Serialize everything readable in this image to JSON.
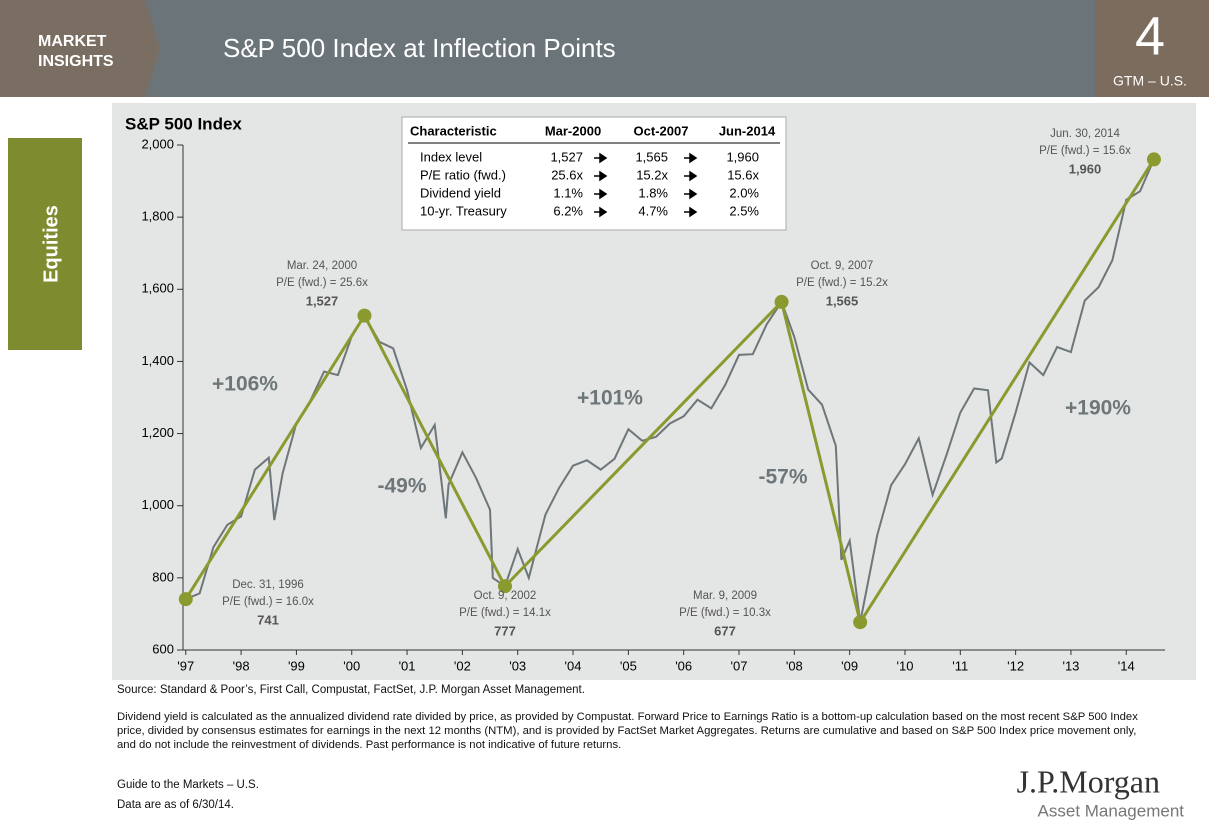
{
  "header": {
    "brand_lines": [
      "MARKET",
      "INSIGHTS"
    ],
    "title": "S&P 500 Index at Inflection Points",
    "page_number": "4",
    "page_label": "GTM – U.S."
  },
  "sidebar": {
    "label": "Equities"
  },
  "chart_data": {
    "type": "line",
    "title": "S&P 500 Index",
    "xlim": [
      1996.95,
      2014.7
    ],
    "xticks": [
      {
        "value": 1997,
        "label": "'97"
      },
      {
        "value": 1998,
        "label": "'98"
      },
      {
        "value": 1999,
        "label": "'99"
      },
      {
        "value": 2000,
        "label": "'00"
      },
      {
        "value": 2001,
        "label": "'01"
      },
      {
        "value": 2002,
        "label": "'02"
      },
      {
        "value": 2003,
        "label": "'03"
      },
      {
        "value": 2004,
        "label": "'04"
      },
      {
        "value": 2005,
        "label": "'05"
      },
      {
        "value": 2006,
        "label": "'06"
      },
      {
        "value": 2007,
        "label": "'07"
      },
      {
        "value": 2008,
        "label": "'08"
      },
      {
        "value": 2009,
        "label": "'09"
      },
      {
        "value": 2010,
        "label": "'10"
      },
      {
        "value": 2011,
        "label": "'11"
      },
      {
        "value": 2012,
        "label": "'12"
      },
      {
        "value": 2013,
        "label": "'13"
      },
      {
        "value": 2014,
        "label": "'14"
      }
    ],
    "ylim": [
      600,
      2000
    ],
    "yticks": [
      600,
      800,
      {
        "value": 1000,
        "label": "1,000"
      },
      {
        "value": 1200,
        "label": "1,200"
      },
      {
        "value": 1400,
        "label": "1,400"
      },
      {
        "value": 1600,
        "label": "1,600"
      },
      {
        "value": 1800,
        "label": "1,800"
      },
      {
        "value": 2000,
        "label": "2,000"
      }
    ],
    "series": [
      {
        "color": "#6d7679",
        "x": [
          1997.0,
          1997.25,
          1997.5,
          1997.75,
          1998.0,
          1998.25,
          1998.5,
          1998.6,
          1998.75,
          1999.0,
          1999.25,
          1999.5,
          1999.75,
          2000.0,
          2000.23,
          2000.5,
          2000.75,
          2001.0,
          2001.25,
          2001.5,
          2001.7,
          2001.75,
          2002.0,
          2002.25,
          2002.5,
          2002.55,
          2002.77,
          2003.0,
          2003.2,
          2003.5,
          2003.75,
          2004.0,
          2004.25,
          2004.5,
          2004.75,
          2005.0,
          2005.25,
          2005.5,
          2005.75,
          2006.0,
          2006.25,
          2006.5,
          2006.75,
          2007.0,
          2007.25,
          2007.5,
          2007.77,
          2008.0,
          2008.25,
          2008.5,
          2008.75,
          2008.85,
          2009.0,
          2009.19,
          2009.5,
          2009.75,
          2010.0,
          2010.25,
          2010.5,
          2010.75,
          2011.0,
          2011.25,
          2011.5,
          2011.65,
          2011.75,
          2012.0,
          2012.25,
          2012.5,
          2012.75,
          2013.0,
          2013.25,
          2013.5,
          2013.75,
          2014.0,
          2014.25,
          2014.5
        ],
        "values": [
          741,
          757,
          885,
          947,
          970,
          1100,
          1133,
          960,
          1090,
          1229,
          1290,
          1372,
          1362,
          1469,
          1527,
          1454,
          1436,
          1320,
          1160,
          1224,
          965,
          1059,
          1148,
          1076,
          989,
          800,
          777,
          880,
          800,
          975,
          1050,
          1111,
          1126,
          1100,
          1130,
          1212,
          1180,
          1191,
          1228,
          1248,
          1294,
          1270,
          1335,
          1418,
          1420,
          1503,
          1565,
          1468,
          1322,
          1280,
          1166,
          850,
          903,
          677,
          919,
          1057,
          1115,
          1187,
          1030,
          1141,
          1258,
          1325,
          1320,
          1120,
          1131,
          1258,
          1397,
          1362,
          1440,
          1426,
          1569,
          1606,
          1681,
          1848,
          1872,
          1960
        ]
      },
      {
        "color": "#8a9a2e",
        "markers": true,
        "x": [
          1997.0,
          2000.23,
          2002.77,
          2007.77,
          2009.19,
          2014.5
        ],
        "values": [
          741,
          1527,
          777,
          1565,
          677,
          1960
        ],
        "value_labels": [
          "741",
          "1,527",
          "777",
          "1,565",
          "677",
          "1,960"
        ]
      }
    ],
    "point_notes": [
      [
        "Dec. 31, 1996",
        "P/E (fwd.) = 16.0x"
      ],
      [
        "Mar. 24, 2000",
        "P/E (fwd.) = 25.6x"
      ],
      [
        "Oct. 9, 2002",
        "P/E (fwd.) = 14.1x"
      ],
      [
        "Oct. 9, 2007",
        "P/E (fwd.) = 15.2x"
      ],
      [
        "Mar. 9, 2009",
        "P/E (fwd.) = 10.3x"
      ],
      [
        "Jun. 30, 2014",
        "P/E (fwd.) = 15.6x"
      ]
    ],
    "annotations": [
      "+106%",
      "-49%",
      "+101%",
      "-57%",
      "+190%"
    ],
    "table": {
      "columns": [
        "Characteristic",
        "Mar-2000",
        "Oct-2007",
        "Jun-2014"
      ],
      "rows": [
        [
          "Index level",
          "1,527",
          "1,565",
          "1,960"
        ],
        [
          "P/E ratio (fwd.)",
          "25.6x",
          "15.2x",
          "15.6x"
        ],
        [
          "Dividend yield",
          "1.1%",
          "1.8%",
          "2.0%"
        ],
        [
          "10-yr. Treasury",
          "6.2%",
          "4.7%",
          "2.5%"
        ]
      ]
    }
  },
  "footer": {
    "source": "Source: Standard & Poor’s, First Call, Compustat, FactSet, J.P. Morgan Asset Management.",
    "note": "Dividend yield is calculated as the annualized dividend rate divided by price, as provided by Compustat. Forward Price to Earnings Ratio is a bottom-up calculation based on the most recent S&P 500 Index price, divided by consensus estimates for earnings in the next 12 months (NTM), and is provided by FactSet Market Aggregates. Returns are cumulative and based on S&P 500 Index price movement only, and do not include the reinvestment of dividends. Past performance is not indicative of future returns.",
    "guide": "Guide to the Markets – U.S.",
    "as_of": "Data are as of 6/30/14.",
    "logo": "J.P.Morgan",
    "logo_sub": "Asset Management"
  }
}
